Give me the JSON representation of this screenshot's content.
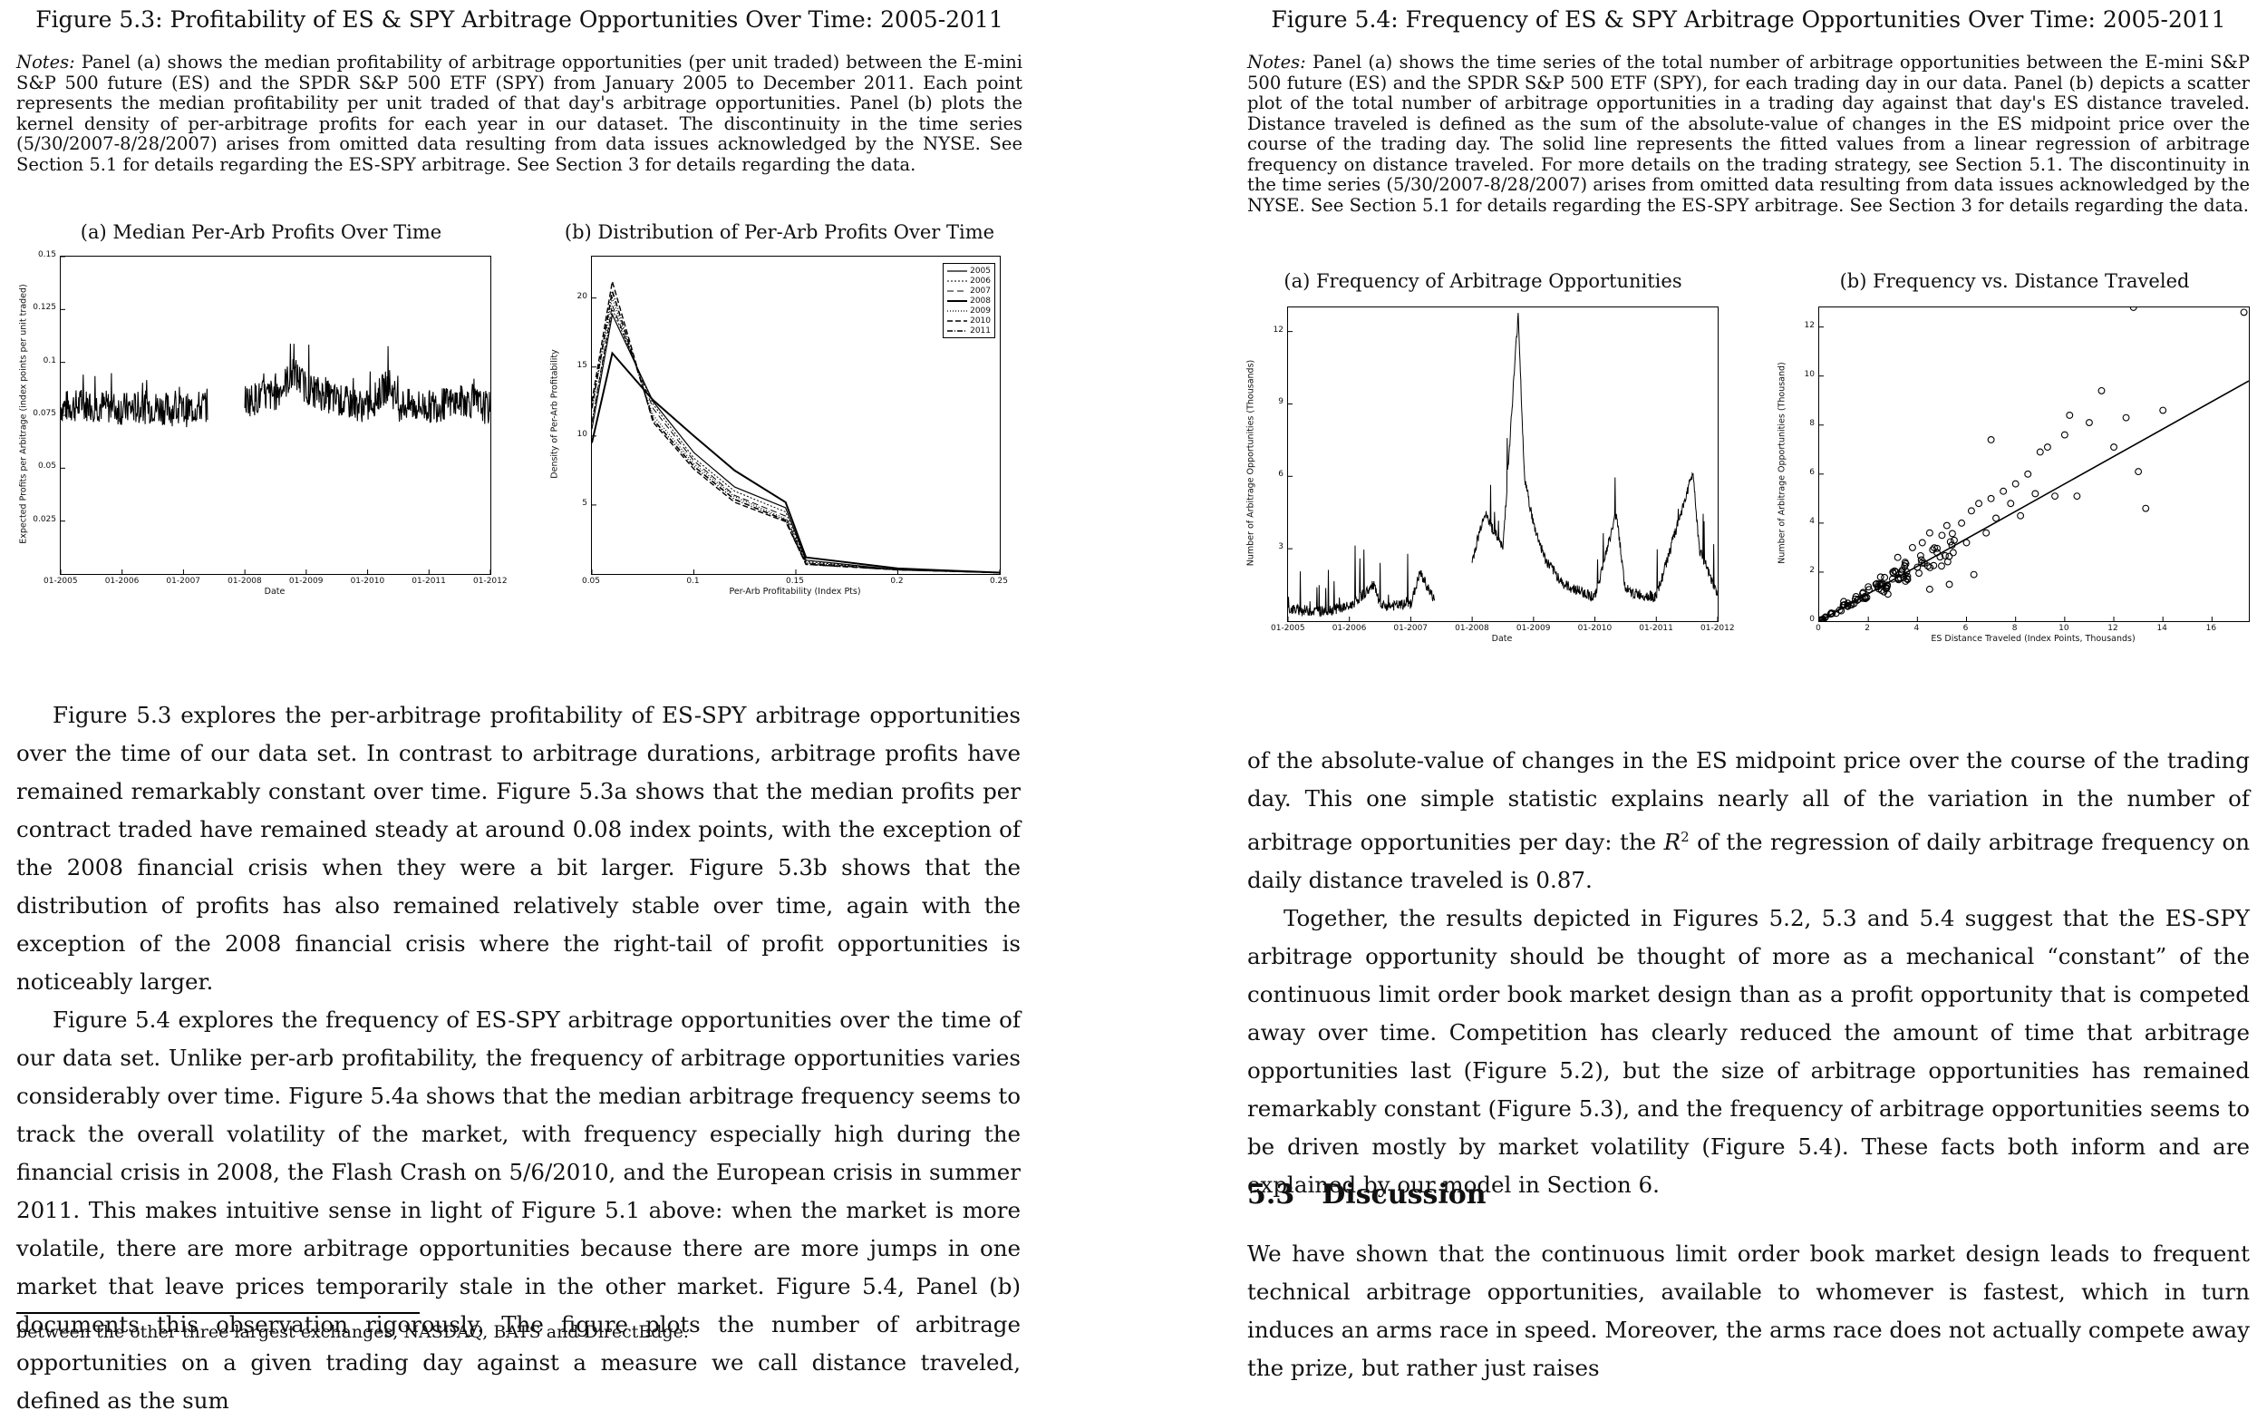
{
  "left": {
    "figure_title": "Figure 5.3: Profitability of ES & SPY Arbitrage Opportunities Over Time: 2005-2011",
    "notes_label": "Notes:",
    "notes_text": " Panel (a) shows the median profitability of arbitrage opportunities (per unit traded) between the E-mini S&P 500 future (ES) and the SPDR S&P 500 ETF (SPY) from January 2005 to December 2011. Each point represents the median profitability per unit traded of that day's arbitrage opportunities. Panel (b) plots the kernel density of per-arbitrage profits for each year in our dataset. The discontinuity in the time series (5/30/2007-8/28/2007) arises from omitted data resulting from data issues acknowledged by the NYSE. See Section 5.1 for details regarding the ES-SPY arbitrage. See Section 3 for details regarding the data.",
    "paragraphs": [
      "Figure 5.3 explores the per-arbitrage profitability of ES-SPY arbitrage opportunities over the time of our data set. In contrast to arbitrage durations, arbitrage profits have remained remarkably constant over time. Figure 5.3a shows that the median profits per contract traded have remained steady at around 0.08 index points, with the exception of the 2008 financial crisis when they were a bit larger. Figure 5.3b shows that the distribution of profits has also remained relatively stable over time, again with the exception of the 2008 financial crisis where the right-tail of profit opportunities is noticeably larger.",
      "Figure 5.4 explores the frequency of ES-SPY arbitrage opportunities over the time of our data set. Unlike per-arb profitability, the frequency of arbitrage opportunities varies considerably over time. Figure 5.4a shows that the median arbitrage frequency seems to track the overall volatility of the market, with frequency especially high during the financial crisis in 2008, the Flash Crash on 5/6/2010, and the European crisis in summer 2011. This makes intuitive sense in light of Figure 5.1 above: when the market is more volatile, there are more arbitrage opportunities because there are more jumps in one market that leave prices temporarily stale in the other market. Figure 5.4, Panel (b) documents this observation rigorously. The figure plots the number of arbitrage opportunities on a given trading day against a measure we call distance traveled, defined as the sum"
    ],
    "footnote": "between the other three largest exchanges, NASDAQ, BATS and DirectEdge."
  },
  "right": {
    "figure_title": "Figure 5.4: Frequency of ES & SPY Arbitrage Opportunities Over Time: 2005-2011",
    "notes_label": "Notes:",
    "notes_text": " Panel (a) shows the time series of the total number of arbitrage opportunities between the E-mini S&P 500 future (ES) and the SPDR S&P 500 ETF (SPY), for each trading day in our data. Panel (b) depicts a scatter plot of the total number of arbitrage opportunities in a trading day against that day's ES distance traveled. Distance traveled is defined as the sum of the absolute-value of changes in the ES midpoint price over the course of the trading day. The solid line represents the fitted values from a linear regression of arbitrage frequency on distance traveled. For more details on the trading strategy, see Section 5.1. The discontinuity in the time series (5/30/2007-8/28/2007) arises from omitted data resulting from data issues acknowledged by the NYSE. See Section 5.1 for details regarding the ES-SPY arbitrage. See Section 3 for details regarding the data.",
    "paragraph_1a": "of the absolute-value of changes in the ES midpoint price over the course of the trading day. This one simple statistic explains nearly all of the variation in the number of arbitrage opportunities per day: the ",
    "paragraph_1_r2": "R",
    "paragraph_1_sup": "2",
    "paragraph_1b": " of the regression of daily arbitrage frequency on daily distance traveled is 0.87.",
    "paragraph_2": "Together, the results depicted in Figures 5.2, 5.3 and 5.4 suggest that the ES-SPY arbitrage opportunity should be thought of more as a mechanical “constant” of the continuous limit order book market design than as a profit opportunity that is competed away over time. Competition has clearly reduced the amount of time that arbitrage opportunities last (Figure 5.2), but the size of arbitrage opportunities has remained remarkably constant (Figure 5.3), and the frequency of arbitrage opportunities seems to be driven mostly by market volatility (Figure 5.4). These facts both inform and are explained by our model in Section 6.",
    "section_number": "5.3",
    "section_title": "Discussion",
    "paragraph_3": "We have shown that the continuous limit order book market design leads to frequent technical arbitrage opportunities, available to whomever is fastest, which in turn induces an arms race in speed. Moreover, the arms race does not actually compete away the prize, but rather just raises"
  },
  "chart_data": [
    {
      "id": "fig53a",
      "type": "line",
      "panel_caption": "(a) Median Per-Arb Profits Over Time",
      "xlabel": "Date",
      "ylabel": "Expected Profits per Arbitrage (index points per unit traded)",
      "x_ticks": [
        "01-2005",
        "01-2006",
        "01-2007",
        "01-2008",
        "01-2009",
        "01-2010",
        "01-2011",
        "01-2012"
      ],
      "y_ticks": [
        "0.025",
        "0.05",
        "0.075",
        "0.1",
        "0.125",
        "0.15"
      ],
      "xlim": [
        2005,
        2012
      ],
      "ylim": [
        0,
        0.15
      ],
      "series": [
        {
          "x": [
            2005.0,
            2005.5,
            2006.0,
            2006.5,
            2007.0,
            2007.4,
            2007.7,
            2008.0,
            2008.5,
            2008.8,
            2009.0,
            2009.5,
            2010.0,
            2010.35,
            2010.5,
            2011.0,
            2011.6,
            2012.0
          ],
          "values": [
            0.079,
            0.08,
            0.078,
            0.079,
            0.077,
            0.08,
            null,
            0.082,
            0.085,
            0.095,
            0.088,
            0.082,
            0.079,
            0.09,
            0.08,
            0.079,
            0.082,
            0.078
          ]
        }
      ]
    },
    {
      "id": "fig53b",
      "type": "line",
      "panel_caption": "(b) Distribution of Per-Arb Profits Over Time",
      "xlabel": "Per-Arb Profitability (Index Pts)",
      "ylabel": "Density of Per-Arb Profitability",
      "x_ticks": [
        "0.05",
        "0.1",
        "0.15",
        "0.2",
        "0.25"
      ],
      "y_ticks": [
        "5",
        "10",
        "15",
        "20"
      ],
      "xlim": [
        0.05,
        0.25
      ],
      "ylim": [
        0,
        23
      ],
      "series": [
        {
          "name": "2005",
          "x": [
            0.05,
            0.06,
            0.08,
            0.1,
            0.12,
            0.145,
            0.155,
            0.2,
            0.25
          ],
          "values": [
            10.5,
            18.8,
            12.5,
            8.8,
            6.3,
            4.8,
            1.0,
            0.3,
            0.1
          ]
        },
        {
          "name": "2006",
          "x": [
            0.05,
            0.06,
            0.08,
            0.1,
            0.12,
            0.145,
            0.155,
            0.2,
            0.25
          ],
          "values": [
            11,
            19.2,
            12.3,
            8.4,
            6.0,
            4.5,
            0.9,
            0.3,
            0.1
          ]
        },
        {
          "name": "2007",
          "x": [
            0.05,
            0.06,
            0.08,
            0.1,
            0.12,
            0.145,
            0.155,
            0.2,
            0.25
          ],
          "values": [
            11,
            19.5,
            12.0,
            8.2,
            5.7,
            4.2,
            0.8,
            0.3,
            0.1
          ]
        },
        {
          "name": "2008",
          "x": [
            0.05,
            0.06,
            0.08,
            0.1,
            0.12,
            0.145,
            0.155,
            0.2,
            0.25
          ],
          "values": [
            9.5,
            16.0,
            12.6,
            10.0,
            7.5,
            5.2,
            1.2,
            0.4,
            0.1
          ]
        },
        {
          "name": "2009",
          "x": [
            0.05,
            0.06,
            0.08,
            0.1,
            0.12,
            0.145,
            0.155,
            0.2,
            0.25
          ],
          "values": [
            12,
            20.0,
            11.5,
            8.0,
            5.6,
            4.0,
            0.8,
            0.3,
            0.1
          ]
        },
        {
          "name": "2010",
          "x": [
            0.05,
            0.06,
            0.08,
            0.1,
            0.12,
            0.145,
            0.155,
            0.2,
            0.25
          ],
          "values": [
            12.5,
            21.2,
            11.0,
            7.6,
            5.2,
            3.8,
            0.7,
            0.3,
            0.1
          ]
        },
        {
          "name": "2011",
          "x": [
            0.05,
            0.06,
            0.08,
            0.1,
            0.12,
            0.145,
            0.155,
            0.2,
            0.25
          ],
          "values": [
            12,
            20.5,
            11.2,
            7.8,
            5.4,
            3.9,
            0.7,
            0.3,
            0.1
          ]
        }
      ],
      "legend": "top-right"
    },
    {
      "id": "fig54a",
      "type": "line",
      "panel_caption": "(a) Frequency of Arbitrage Opportunities",
      "xlabel": "Date",
      "ylabel": "Number of Arbitrage Opportunities (Thousands)",
      "x_ticks": [
        "01-2005",
        "01-2006",
        "01-2007",
        "01-2008",
        "01-2009",
        "01-2010",
        "01-2011",
        "01-2012"
      ],
      "y_ticks": [
        "3",
        "6",
        "9",
        "12"
      ],
      "xlim": [
        2005,
        2012
      ],
      "ylim": [
        0,
        13
      ],
      "series": [
        {
          "x": [
            2005.0,
            2005.5,
            2006.0,
            2006.4,
            2006.5,
            2007.0,
            2007.15,
            2007.4,
            2007.7,
            2008.0,
            2008.2,
            2008.5,
            2008.75,
            2008.85,
            2009.0,
            2009.2,
            2009.5,
            2010.0,
            2010.35,
            2010.5,
            2011.0,
            2011.6,
            2011.7,
            2012.0
          ],
          "values": [
            0.5,
            0.4,
            0.6,
            1.5,
            0.6,
            0.7,
            2.0,
            0.8,
            null,
            2.5,
            4.5,
            3.0,
            12.8,
            6.0,
            4.0,
            2.5,
            1.5,
            1.0,
            4.5,
            1.2,
            1.0,
            6.2,
            3.0,
            1.0
          ]
        }
      ]
    },
    {
      "id": "fig54b",
      "type": "scatter",
      "panel_caption": "(b) Frequency vs. Distance Traveled",
      "xlabel": "ES Distance Traveled (Index Points, Thousands)",
      "ylabel": "Number of Arbitrage Opportunities (Thousand)",
      "x_ticks": [
        "0",
        "2",
        "4",
        "6",
        "8",
        "10",
        "12",
        "14",
        "16"
      ],
      "y_ticks": [
        "0",
        "2",
        "4",
        "6",
        "8",
        "10",
        "12"
      ],
      "xlim": [
        0,
        17.5
      ],
      "ylim": [
        0,
        12.8
      ],
      "points": [
        [
          0.5,
          0.3
        ],
        [
          1.0,
          0.8
        ],
        [
          1.5,
          1.0
        ],
        [
          2.0,
          1.4
        ],
        [
          2.5,
          1.8
        ],
        [
          3.0,
          2.0
        ],
        [
          3.2,
          2.6
        ],
        [
          3.5,
          2.4
        ],
        [
          3.8,
          3.0
        ],
        [
          4.0,
          2.2
        ],
        [
          4.2,
          3.2
        ],
        [
          4.5,
          3.6
        ],
        [
          4.8,
          2.8
        ],
        [
          5.0,
          3.5
        ],
        [
          5.2,
          3.9
        ],
        [
          5.5,
          3.3
        ],
        [
          5.8,
          4.0
        ],
        [
          6.0,
          3.2
        ],
        [
          6.2,
          4.5
        ],
        [
          6.5,
          4.8
        ],
        [
          6.8,
          3.6
        ],
        [
          7.0,
          5.0
        ],
        [
          7.2,
          4.2
        ],
        [
          7.5,
          5.3
        ],
        [
          7.8,
          4.8
        ],
        [
          8.0,
          5.6
        ],
        [
          8.2,
          4.3
        ],
        [
          8.5,
          6.0
        ],
        [
          8.8,
          5.2
        ],
        [
          9.0,
          6.9
        ],
        [
          9.3,
          7.1
        ],
        [
          9.6,
          5.1
        ],
        [
          10.0,
          7.6
        ],
        [
          10.2,
          8.4
        ],
        [
          10.5,
          5.1
        ],
        [
          11.0,
          8.1
        ],
        [
          11.5,
          9.4
        ],
        [
          12.0,
          7.1
        ],
        [
          12.5,
          8.3
        ],
        [
          13.0,
          6.1
        ],
        [
          13.3,
          4.6
        ],
        [
          14.0,
          8.6
        ],
        [
          7.0,
          7.4
        ],
        [
          6.3,
          1.9
        ],
        [
          5.3,
          1.5
        ],
        [
          4.5,
          1.3
        ],
        [
          12.8,
          12.8
        ],
        [
          17.3,
          12.6
        ],
        [
          2.8,
          1.1
        ],
        [
          3.6,
          1.7
        ]
      ],
      "fit_line": {
        "x": [
          0,
          17.5
        ],
        "y": [
          0,
          9.8
        ]
      }
    }
  ]
}
